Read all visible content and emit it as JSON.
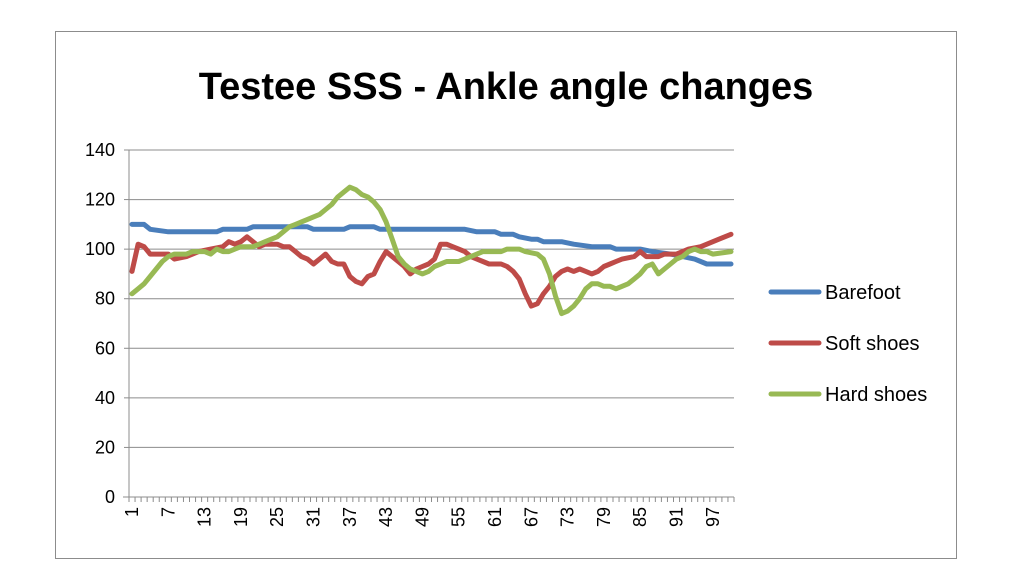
{
  "chart_data": {
    "type": "line",
    "title": "Testee  SSS - Ankle angle changes",
    "xlabel": "",
    "ylabel": "",
    "ylim": [
      0,
      140
    ],
    "y_ticks": [
      0,
      20,
      40,
      60,
      80,
      100,
      120,
      140
    ],
    "x_range": [
      1,
      100
    ],
    "x_tick_labels": [
      "1",
      "7",
      "13",
      "19",
      "25",
      "31",
      "37",
      "43",
      "49",
      "55",
      "61",
      "67",
      "73",
      "79",
      "85",
      "91",
      "97"
    ],
    "grid": "horizontal",
    "legend_position": "right",
    "series": [
      {
        "name": "Barefoot",
        "color": "#4a7ebb",
        "points": [
          [
            1,
            110
          ],
          [
            3,
            110
          ],
          [
            4,
            108
          ],
          [
            7,
            107
          ],
          [
            15,
            107
          ],
          [
            16,
            108
          ],
          [
            20,
            108
          ],
          [
            21,
            109
          ],
          [
            30,
            109
          ],
          [
            31,
            108
          ],
          [
            36,
            108
          ],
          [
            37,
            109
          ],
          [
            41,
            109
          ],
          [
            42,
            108
          ],
          [
            56,
            108
          ],
          [
            58,
            107
          ],
          [
            61,
            107
          ],
          [
            62,
            106
          ],
          [
            64,
            106
          ],
          [
            65,
            105
          ],
          [
            67,
            104
          ],
          [
            68,
            104
          ],
          [
            69,
            103
          ],
          [
            72,
            103
          ],
          [
            74,
            102
          ],
          [
            77,
            101
          ],
          [
            80,
            101
          ],
          [
            81,
            100
          ],
          [
            85,
            100
          ],
          [
            87,
            99
          ],
          [
            90,
            98
          ],
          [
            92,
            97
          ],
          [
            94,
            96
          ],
          [
            96,
            94
          ],
          [
            100,
            94
          ]
        ]
      },
      {
        "name": "Soft shoes",
        "color": "#be4b48",
        "points": [
          [
            1,
            91
          ],
          [
            2,
            102
          ],
          [
            3,
            101
          ],
          [
            4,
            98
          ],
          [
            7,
            98
          ],
          [
            8,
            96
          ],
          [
            10,
            97
          ],
          [
            12,
            99
          ],
          [
            14,
            100
          ],
          [
            16,
            101
          ],
          [
            17,
            103
          ],
          [
            18,
            102
          ],
          [
            19,
            103
          ],
          [
            20,
            105
          ],
          [
            21,
            103
          ],
          [
            22,
            101
          ],
          [
            23,
            102
          ],
          [
            25,
            102
          ],
          [
            26,
            101
          ],
          [
            27,
            101
          ],
          [
            28,
            99
          ],
          [
            29,
            97
          ],
          [
            30,
            96
          ],
          [
            31,
            94
          ],
          [
            32,
            96
          ],
          [
            33,
            98
          ],
          [
            34,
            95
          ],
          [
            35,
            94
          ],
          [
            36,
            94
          ],
          [
            37,
            89
          ],
          [
            38,
            87
          ],
          [
            39,
            86
          ],
          [
            40,
            89
          ],
          [
            41,
            90
          ],
          [
            42,
            95
          ],
          [
            43,
            99
          ],
          [
            44,
            97
          ],
          [
            45,
            95
          ],
          [
            46,
            93
          ],
          [
            47,
            90
          ],
          [
            48,
            92
          ],
          [
            49,
            93
          ],
          [
            50,
            94
          ],
          [
            51,
            96
          ],
          [
            52,
            102
          ],
          [
            53,
            102
          ],
          [
            54,
            101
          ],
          [
            55,
            100
          ],
          [
            56,
            99
          ],
          [
            57,
            97
          ],
          [
            58,
            96
          ],
          [
            59,
            95
          ],
          [
            60,
            94
          ],
          [
            62,
            94
          ],
          [
            63,
            93
          ],
          [
            64,
            91
          ],
          [
            65,
            88
          ],
          [
            66,
            82
          ],
          [
            67,
            77
          ],
          [
            68,
            78
          ],
          [
            69,
            82
          ],
          [
            70,
            85
          ],
          [
            71,
            89
          ],
          [
            72,
            91
          ],
          [
            73,
            92
          ],
          [
            74,
            91
          ],
          [
            75,
            92
          ],
          [
            76,
            91
          ],
          [
            77,
            90
          ],
          [
            78,
            91
          ],
          [
            79,
            93
          ],
          [
            80,
            94
          ],
          [
            81,
            95
          ],
          [
            82,
            96
          ],
          [
            84,
            97
          ],
          [
            85,
            99
          ],
          [
            86,
            97
          ],
          [
            88,
            97
          ],
          [
            89,
            98
          ],
          [
            91,
            98
          ],
          [
            92,
            99
          ],
          [
            93,
            100
          ],
          [
            95,
            101
          ],
          [
            96,
            102
          ],
          [
            98,
            104
          ],
          [
            100,
            106
          ]
        ]
      },
      {
        "name": "Hard shoes",
        "color": "#98b954",
        "points": [
          [
            1,
            82
          ],
          [
            2,
            84
          ],
          [
            3,
            86
          ],
          [
            4,
            89
          ],
          [
            5,
            92
          ],
          [
            6,
            95
          ],
          [
            7,
            97
          ],
          [
            8,
            98
          ],
          [
            10,
            98
          ],
          [
            11,
            99
          ],
          [
            13,
            99
          ],
          [
            14,
            98
          ],
          [
            15,
            100
          ],
          [
            16,
            99
          ],
          [
            17,
            99
          ],
          [
            18,
            100
          ],
          [
            19,
            101
          ],
          [
            20,
            101
          ],
          [
            21,
            101
          ],
          [
            22,
            102
          ],
          [
            23,
            103
          ],
          [
            24,
            104
          ],
          [
            25,
            105
          ],
          [
            26,
            107
          ],
          [
            27,
            109
          ],
          [
            28,
            110
          ],
          [
            29,
            111
          ],
          [
            30,
            112
          ],
          [
            31,
            113
          ],
          [
            32,
            114
          ],
          [
            33,
            116
          ],
          [
            34,
            118
          ],
          [
            35,
            121
          ],
          [
            36,
            123
          ],
          [
            37,
            125
          ],
          [
            38,
            124
          ],
          [
            39,
            122
          ],
          [
            40,
            121
          ],
          [
            41,
            119
          ],
          [
            42,
            116
          ],
          [
            43,
            111
          ],
          [
            44,
            104
          ],
          [
            45,
            97
          ],
          [
            46,
            94
          ],
          [
            47,
            92
          ],
          [
            48,
            91
          ],
          [
            49,
            90
          ],
          [
            50,
            91
          ],
          [
            51,
            93
          ],
          [
            52,
            94
          ],
          [
            53,
            95
          ],
          [
            55,
            95
          ],
          [
            56,
            96
          ],
          [
            57,
            97
          ],
          [
            58,
            98
          ],
          [
            59,
            99
          ],
          [
            62,
            99
          ],
          [
            63,
            100
          ],
          [
            64,
            100
          ],
          [
            65,
            100
          ],
          [
            66,
            99
          ],
          [
            68,
            98
          ],
          [
            69,
            96
          ],
          [
            70,
            90
          ],
          [
            71,
            81
          ],
          [
            72,
            74
          ],
          [
            73,
            75
          ],
          [
            74,
            77
          ],
          [
            75,
            80
          ],
          [
            76,
            84
          ],
          [
            77,
            86
          ],
          [
            78,
            86
          ],
          [
            79,
            85
          ],
          [
            80,
            85
          ],
          [
            81,
            84
          ],
          [
            82,
            85
          ],
          [
            83,
            86
          ],
          [
            84,
            88
          ],
          [
            85,
            90
          ],
          [
            86,
            93
          ],
          [
            87,
            94
          ],
          [
            88,
            90
          ],
          [
            89,
            92
          ],
          [
            90,
            94
          ],
          [
            91,
            96
          ],
          [
            92,
            97
          ],
          [
            93,
            99
          ],
          [
            94,
            100
          ],
          [
            95,
            99
          ],
          [
            96,
            99
          ],
          [
            97,
            98
          ],
          [
            100,
            99
          ]
        ]
      }
    ]
  }
}
